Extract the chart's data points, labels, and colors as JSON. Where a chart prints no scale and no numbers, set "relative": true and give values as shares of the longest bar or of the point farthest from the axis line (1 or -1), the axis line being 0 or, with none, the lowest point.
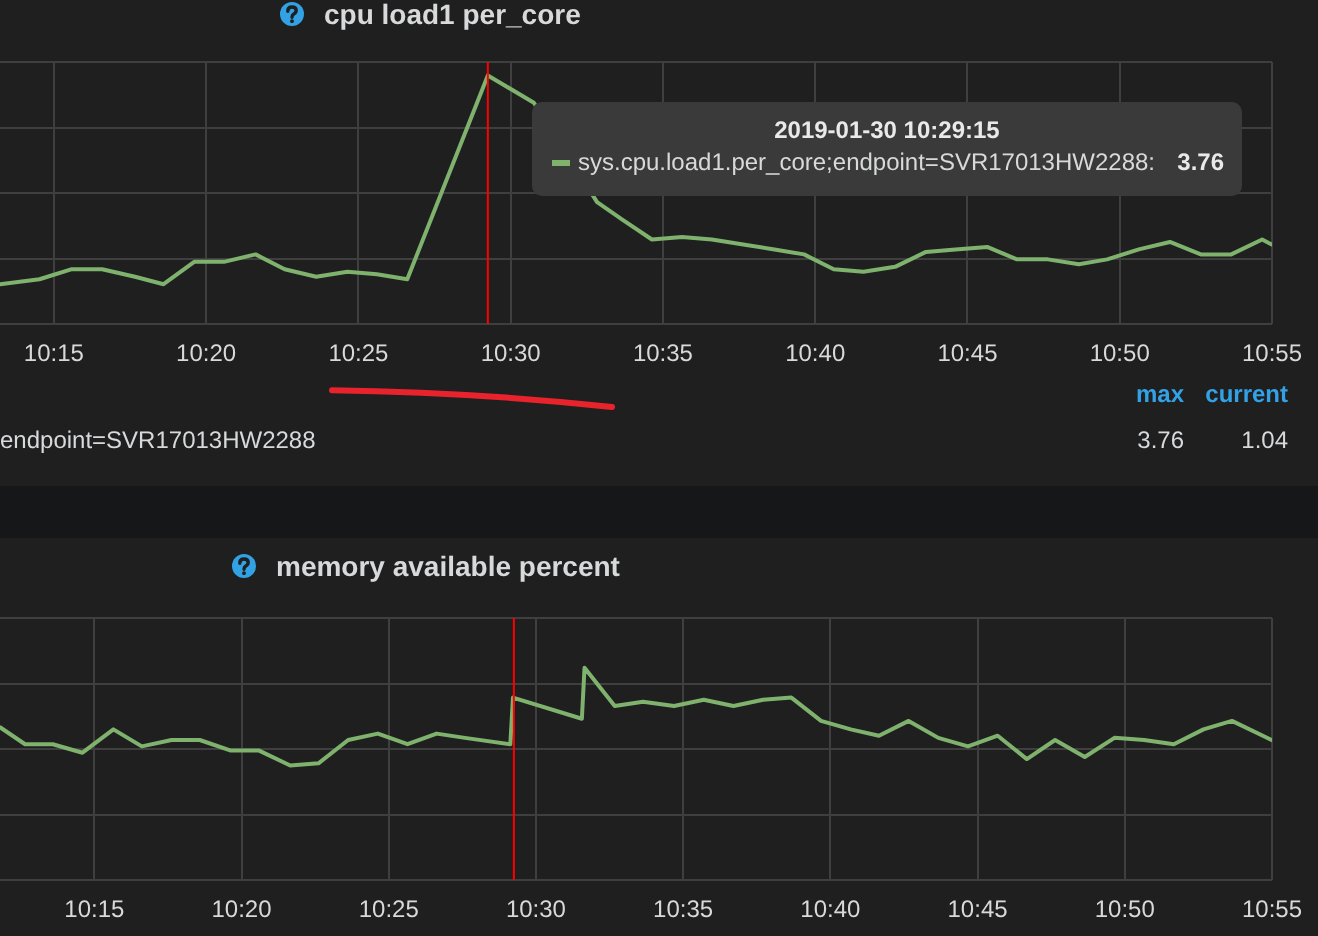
{
  "chart_data": [
    {
      "type": "line",
      "title": "cpu load1 per_core",
      "relative": true,
      "x": [
        10.2205,
        10.2421,
        10.2594,
        10.2764,
        10.2944,
        10.31,
        10.3268,
        10.3431,
        10.3604,
        10.3763,
        10.3936,
        10.4106,
        10.4268,
        10.4434,
        10.4875,
        10.5127,
        10.5473,
        10.5611,
        10.5773,
        10.5938,
        10.6101,
        10.6273,
        10.6444,
        10.6606,
        10.6768,
        10.6931,
        10.7104,
        10.7273,
        10.7435,
        10.7608,
        10.7771,
        10.794,
        10.811,
        10.8265,
        10.8438,
        10.8608,
        10.8777,
        10.8944,
        10.9113,
        10.9165
      ],
      "series": [
        {
          "name": "sys.cpu.load1.per_core;endpoint=SVR17013HW2288:",
          "color": "#7eb26d",
          "values": [
            0.16,
            0.18,
            0.22,
            0.22,
            0.19,
            0.16,
            0.25,
            0.25,
            0.28,
            0.22,
            0.19,
            0.21,
            0.2,
            0.18,
            1,
            0.89,
            0.49,
            0.42,
            0.34,
            0.35,
            0.34,
            0.32,
            0.3,
            0.28,
            0.22,
            0.21,
            0.23,
            0.29,
            0.3,
            0.31,
            0.26,
            0.26,
            0.24,
            0.26,
            0.3,
            0.33,
            0.28,
            0.28,
            0.34,
            0.32
          ]
        }
      ],
      "xlim": [
        10.2205,
        10.91667
      ],
      "xticks": [
        {
          "value": 10.25,
          "label": "10:15"
        },
        {
          "value": 10.33333,
          "label": "10:20"
        },
        {
          "value": 10.41667,
          "label": "10:25"
        },
        {
          "value": 10.5,
          "label": "10:30"
        },
        {
          "value": 10.58333,
          "label": "10:35"
        },
        {
          "value": 10.66667,
          "label": "10:40"
        },
        {
          "value": 10.75,
          "label": "10:45"
        },
        {
          "value": 10.83333,
          "label": "10:50"
        },
        {
          "value": 10.91667,
          "label": "10:55"
        }
      ],
      "grid": true,
      "legend": "top right",
      "marker": "none",
      "ref_lines": [
        {
          "axis": "x",
          "value": 10.4875,
          "color": "#ff0000"
        }
      ],
      "annotations": [
        "2019-01-30 10:29:15",
        "3.76",
        "endpoint=SVR17013HW2288",
        "max",
        "current",
        "3.76",
        "1.04"
      ]
    },
    {
      "type": "line",
      "title": "memory available percent",
      "relative": true,
      "x": [
        10.1966,
        10.2108,
        10.2265,
        10.2433,
        10.2608,
        10.2769,
        10.2937,
        10.3097,
        10.3273,
        10.3433,
        10.3609,
        10.3769,
        10.3937,
        10.4105,
        10.4273,
        10.4438,
        10.4598,
        10.4855,
        10.487,
        10.526,
        10.5275,
        10.5446,
        10.5606,
        10.5782,
        10.595,
        10.6118,
        10.6286,
        10.6446,
        10.6614,
        10.6782,
        10.6942,
        10.711,
        10.7278,
        10.7446,
        10.7614,
        10.7779,
        10.7939,
        10.8107,
        10.8275,
        10.8443,
        10.8611,
        10.8779,
        10.894,
        10.9115,
        10.9164
      ],
      "series": [
        {
          "color": "#7eb26d",
          "values": [
            0.72,
            0.64,
            0.64,
            0.6,
            0.71,
            0.63,
            0.66,
            0.66,
            0.61,
            0.61,
            0.54,
            0.55,
            0.66,
            0.69,
            0.64,
            0.69,
            0.67,
            0.64,
            0.86,
            0.76,
            1,
            0.82,
            0.84,
            0.82,
            0.85,
            0.82,
            0.85,
            0.86,
            0.75,
            0.71,
            0.68,
            0.75,
            0.67,
            0.63,
            0.68,
            0.57,
            0.66,
            0.58,
            0.67,
            0.66,
            0.64,
            0.71,
            0.75,
            0.68,
            0.66
          ]
        }
      ],
      "xlim": [
        10.1966,
        10.91667
      ],
      "xticks": [
        {
          "value": 10.25,
          "label": "10:15"
        },
        {
          "value": 10.33333,
          "label": "10:20"
        },
        {
          "value": 10.41667,
          "label": "10:25"
        },
        {
          "value": 10.5,
          "label": "10:30"
        },
        {
          "value": 10.58333,
          "label": "10:35"
        },
        {
          "value": 10.66667,
          "label": "10:40"
        },
        {
          "value": 10.75,
          "label": "10:45"
        },
        {
          "value": 10.83333,
          "label": "10:50"
        },
        {
          "value": 10.91667,
          "label": "10:55"
        }
      ],
      "grid": true,
      "marker": "none",
      "ref_lines": [
        {
          "axis": "x",
          "value": 10.4875,
          "color": "#ff0000"
        }
      ]
    }
  ]
}
